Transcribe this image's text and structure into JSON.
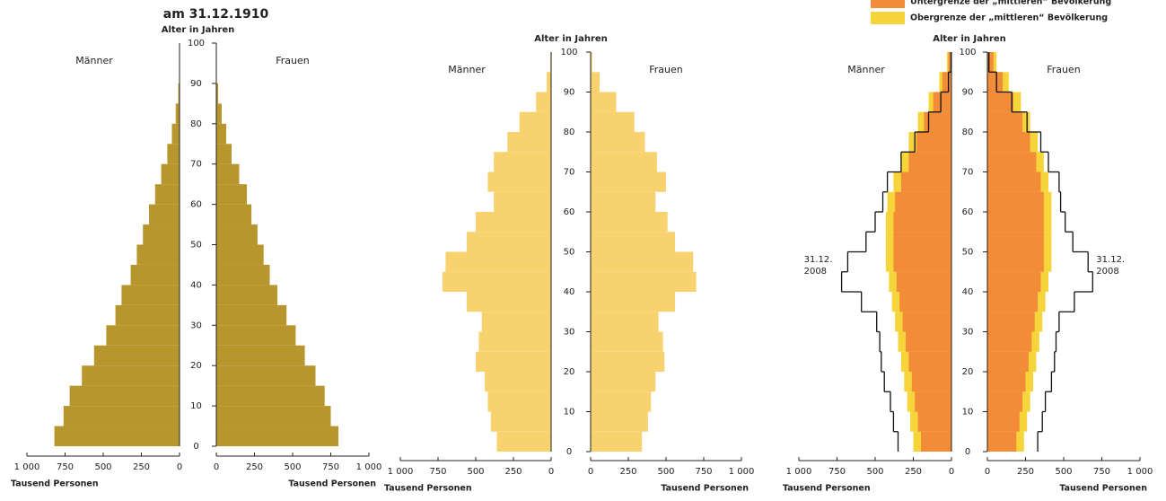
{
  "chart_data": [
    {
      "type": "pyramid",
      "title": "am 31.12.1910",
      "age_axis_label": "Alter in Jahren",
      "left_label": "Männer",
      "right_label": "Frauen",
      "x_axis_label": "Tausend Personen",
      "bins": [
        0,
        5,
        10,
        15,
        20,
        25,
        30,
        35,
        40,
        45,
        50,
        55,
        60,
        65,
        70,
        75,
        80,
        85,
        90,
        95,
        100
      ],
      "xlim": [
        0,
        1000
      ],
      "xticks": [
        {
          "value": 1000,
          "label": "1 000"
        },
        750,
        500,
        250,
        0
      ],
      "ylim": [
        0,
        100
      ],
      "yticks": [
        0,
        10,
        20,
        30,
        40,
        50,
        60,
        70,
        80,
        90,
        100
      ],
      "series": [
        {
          "style": "bar",
          "color": "#b8962e",
          "male": [
            820,
            760,
            720,
            640,
            560,
            480,
            420,
            380,
            320,
            280,
            240,
            200,
            160,
            120,
            80,
            50,
            25,
            8,
            2,
            0
          ],
          "female": [
            800,
            750,
            710,
            650,
            580,
            520,
            460,
            400,
            350,
            310,
            270,
            230,
            200,
            150,
            100,
            65,
            35,
            12,
            3,
            0
          ]
        }
      ]
    },
    {
      "type": "pyramid",
      "age_axis_label": "Alter in Jahren",
      "left_label": "Männer",
      "right_label": "Frauen",
      "x_axis_label": "Tausend Personen",
      "bins": [
        0,
        5,
        10,
        15,
        20,
        25,
        30,
        35,
        40,
        45,
        50,
        55,
        60,
        65,
        70,
        75,
        80,
        85,
        90,
        95,
        100
      ],
      "xlim": [
        0,
        1000
      ],
      "xticks": [
        {
          "value": 1000,
          "label": "1 000"
        },
        750,
        500,
        250,
        0
      ],
      "ylim": [
        0,
        100
      ],
      "yticks": [
        0,
        10,
        20,
        30,
        40,
        50,
        60,
        70,
        80,
        90,
        100
      ],
      "series": [
        {
          "style": "bar",
          "color": "#f7d26e",
          "male": [
            360,
            400,
            420,
            440,
            500,
            480,
            460,
            560,
            720,
            700,
            560,
            500,
            380,
            420,
            380,
            290,
            210,
            100,
            30,
            5
          ],
          "female": [
            340,
            380,
            400,
            430,
            490,
            480,
            450,
            560,
            700,
            680,
            560,
            510,
            430,
            500,
            440,
            360,
            290,
            170,
            60,
            10
          ]
        }
      ]
    },
    {
      "type": "pyramid",
      "age_axis_label": "Alter in Jahren",
      "left_label": "Männer",
      "right_label": "Frauen",
      "x_axis_label": "Tausend Personen",
      "bins": [
        0,
        5,
        10,
        15,
        20,
        25,
        30,
        35,
        40,
        45,
        50,
        55,
        60,
        65,
        70,
        75,
        80,
        85,
        90,
        95,
        100
      ],
      "xlim": [
        0,
        1000
      ],
      "xticks": [
        {
          "value": 1000,
          "label": "1 000"
        },
        750,
        500,
        250,
        0
      ],
      "ylim": [
        0,
        100
      ],
      "yticks": [
        0,
        10,
        20,
        30,
        40,
        50,
        60,
        70,
        80,
        90,
        100
      ],
      "series": [
        {
          "style": "bar",
          "name": "Untergrenze der „mittleren“ Bevölkerung",
          "color": "#f28c38",
          "male": [
            200,
            220,
            240,
            260,
            280,
            300,
            320,
            340,
            360,
            380,
            380,
            380,
            370,
            330,
            280,
            230,
            180,
            120,
            60,
            20
          ],
          "female": [
            190,
            210,
            230,
            250,
            270,
            290,
            310,
            330,
            350,
            370,
            370,
            370,
            370,
            350,
            320,
            280,
            230,
            170,
            100,
            40
          ]
        },
        {
          "style": "bar",
          "name": "Obergrenze der „mittleren“ Bevölkerung",
          "color": "#f5d53a",
          "male": [
            250,
            270,
            290,
            310,
            330,
            350,
            370,
            390,
            410,
            430,
            430,
            430,
            420,
            380,
            330,
            280,
            220,
            150,
            80,
            30
          ],
          "female": [
            240,
            260,
            280,
            300,
            320,
            340,
            360,
            380,
            400,
            420,
            420,
            420,
            420,
            400,
            370,
            330,
            280,
            220,
            140,
            60
          ]
        },
        {
          "style": "line",
          "label": [
            "31.12.",
            "2008"
          ],
          "color": "#111",
          "male": [
            350,
            380,
            400,
            440,
            460,
            470,
            490,
            590,
            720,
            680,
            560,
            500,
            450,
            420,
            330,
            240,
            150,
            70,
            20,
            3
          ],
          "female": [
            330,
            360,
            380,
            420,
            440,
            450,
            470,
            570,
            690,
            660,
            560,
            510,
            480,
            470,
            400,
            350,
            260,
            160,
            60,
            10
          ]
        }
      ]
    }
  ]
}
